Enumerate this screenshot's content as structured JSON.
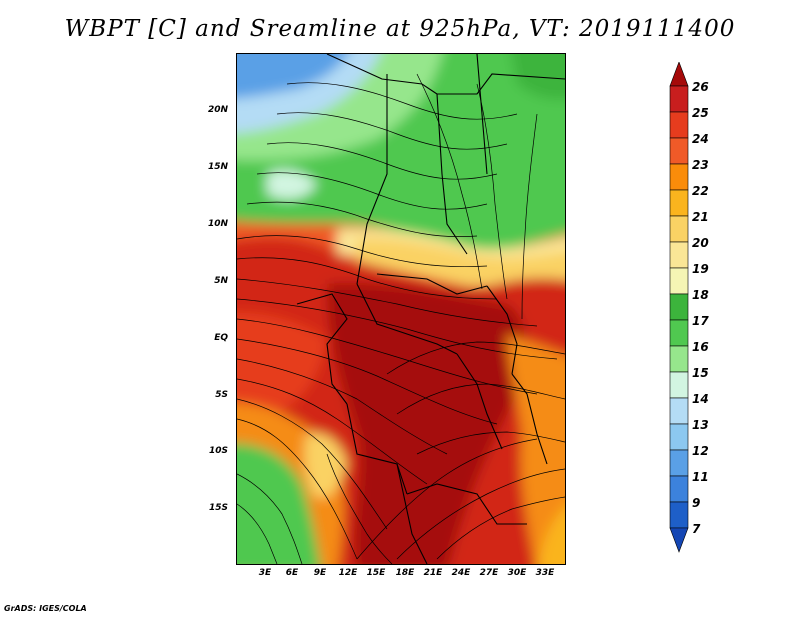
{
  "title": "WBPT [C] and Sreamline at 925hPa, VT: 2019111400",
  "credit": "GrADS: IGES/COLA",
  "map": {
    "variable": "WBPT [C]",
    "overlay": "Sreamline",
    "level": "925hPa",
    "valid_time": "2019111400",
    "lat_ticks": [
      "20N",
      "15N",
      "10N",
      "5N",
      "EQ",
      "5S",
      "10S",
      "15S"
    ],
    "lon_ticks": [
      "3E",
      "6E",
      "9E",
      "12E",
      "15E",
      "18E",
      "21E",
      "24E",
      "27E",
      "30E",
      "33E"
    ]
  },
  "colorbar": {
    "levels": [
      "26",
      "25",
      "24",
      "23",
      "22",
      "21",
      "20",
      "19",
      "18",
      "17",
      "16",
      "15",
      "14",
      "13",
      "12",
      "11",
      "9",
      "7"
    ],
    "colors": [
      "#a50a0a",
      "#c81e1e",
      "#e63c1e",
      "#f05a28",
      "#fa8c0a",
      "#fab41e",
      "#fad264",
      "#fae696",
      "#f5f5b4",
      "#3cb43c",
      "#50c850",
      "#96e68c",
      "#d2f5e1",
      "#b4dcf5",
      "#8cc8f0",
      "#5aa0e6",
      "#3c82dc",
      "#1e5fc8",
      "#1446b4"
    ]
  },
  "colors": {
    "deep_red": "#a50a0a",
    "red": "#d22814",
    "orange_red": "#eb4b1e",
    "orange": "#f58c14",
    "yellow": "#fad264",
    "pale_yellow": "#fae69b",
    "green": "#3cb43c",
    "light_green": "#8cdc78",
    "pale_cyan": "#d2f0dc",
    "light_blue": "#a0d2f5",
    "blue": "#5aa0e6"
  }
}
